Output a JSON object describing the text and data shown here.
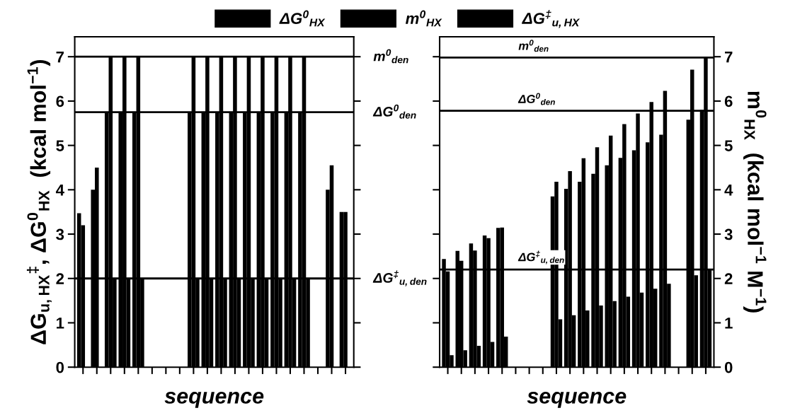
{
  "chart_data": [
    {
      "type": "bar",
      "xlabel": "sequence",
      "ylabel": "ΔG$_{u,HX}$$^{‡}$, ΔG$^{0}$$_{HX}$  (kcal mol$^{−1}$)",
      "categories": [
        null,
        null,
        null,
        null,
        null,
        null,
        null,
        null,
        null,
        null,
        null,
        null,
        null,
        null,
        null,
        null,
        null,
        null,
        null,
        null
      ],
      "series": [
        {
          "name": "ΔG$^{0}$$_{HX}$",
          "color": "#000000",
          "values": [
            3.47,
            4.0,
            5.75,
            5.75,
            5.75,
            null,
            null,
            null,
            5.75,
            5.75,
            5.75,
            5.75,
            5.75,
            5.75,
            5.75,
            5.75,
            5.75,
            null,
            4.0,
            3.5
          ]
        },
        {
          "name": "m$^{0}$$_{HX}$",
          "color": "#000000",
          "values": [
            3.2,
            4.5,
            7.0,
            7.0,
            7.0,
            null,
            null,
            null,
            7.0,
            7.0,
            7.0,
            7.0,
            7.0,
            7.0,
            7.0,
            7.0,
            7.0,
            null,
            4.55,
            3.5
          ]
        },
        {
          "name": "ΔG$^{‡}$$_{u,HX}$",
          "color": "#000000",
          "values": [
            null,
            null,
            2.0,
            2.0,
            2.0,
            null,
            null,
            null,
            2.0,
            2.0,
            2.0,
            2.0,
            2.0,
            2.0,
            2.0,
            2.0,
            2.0,
            null,
            null,
            null
          ]
        }
      ],
      "ylim": [
        0,
        7.45
      ],
      "yticks": [
        0,
        1,
        2,
        3,
        4,
        5,
        6,
        7
      ],
      "ref_lines": [
        {
          "axis": "y",
          "value": 7.0,
          "label": "m$^{0}$$_{den}$"
        },
        {
          "axis": "y",
          "value": 5.75,
          "label": "ΔG$^{0}$$_{den}$"
        },
        {
          "axis": "y",
          "value": 2.0,
          "label": "ΔG$^{‡}$$_{u,den}$"
        }
      ],
      "legend": "top",
      "tick_labels": "y"
    },
    {
      "type": "bar",
      "xlabel": "sequence",
      "y2label": "m$^{0}$$_{HX}$  (kcal mol$^{−1}$ M$^{−1}$)",
      "categories": [
        null,
        null,
        null,
        null,
        null,
        null,
        null,
        null,
        null,
        null,
        null,
        null,
        null,
        null,
        null,
        null,
        null,
        null,
        null,
        null
      ],
      "series": [
        {
          "color": "#000000",
          "axis": "y2",
          "values": [
            2.44,
            2.62,
            2.79,
            2.97,
            3.14,
            null,
            null,
            null,
            3.85,
            4.02,
            4.18,
            4.36,
            4.55,
            4.72,
            4.89,
            5.07,
            5.24,
            null,
            5.58,
            5.8
          ]
        },
        {
          "color": "#000000",
          "axis": "y2",
          "values": [
            2.16,
            2.4,
            2.63,
            2.91,
            3.15,
            null,
            null,
            null,
            4.18,
            4.42,
            4.71,
            4.96,
            5.22,
            5.48,
            5.72,
            5.98,
            6.23,
            null,
            6.71,
            7.0
          ]
        },
        {
          "color": "#000000",
          "axis": "y2",
          "values": [
            0.27,
            0.38,
            0.48,
            0.57,
            0.69,
            null,
            null,
            null,
            1.08,
            1.17,
            1.28,
            1.39,
            1.49,
            1.59,
            1.68,
            1.77,
            1.88,
            null,
            2.07,
            2.19
          ]
        }
      ],
      "y2lim": [
        0,
        7.45
      ],
      "y2ticks": [
        0,
        1,
        2,
        3,
        4,
        5,
        6,
        7
      ],
      "ref_lines": [
        {
          "axis": "y2",
          "value": 6.98,
          "label": "m$^{0}$$_{den}$"
        },
        {
          "axis": "y2",
          "value": 5.78,
          "label": "ΔG$^{0}$$_{den}$"
        },
        {
          "axis": "y2",
          "value": 2.2,
          "label": "ΔG$^{‡}$$_{u,den}$"
        }
      ],
      "tick_labels": "y"
    }
  ]
}
